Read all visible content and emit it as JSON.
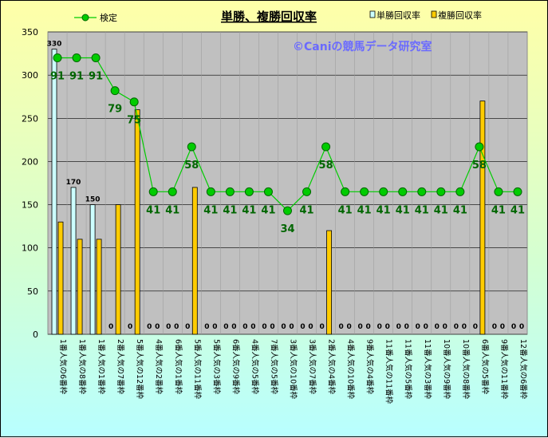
{
  "chart_data": {
    "type": "bar",
    "title": "単勝、複勝回収率",
    "watermark": "©Caniの競馬データ研究室",
    "ylim": [
      0,
      350
    ],
    "yticks": [
      0,
      50,
      100,
      150,
      200,
      250,
      300,
      350
    ],
    "grid": true,
    "legend_position": "top",
    "categories": [
      "1番人気の6番枠",
      "1番人気の8番枠",
      "1番人気の1番枠",
      "2番人気の7番枠",
      "5番人気の12番枠",
      "4番人気の2番枠",
      "6番人気の1番枠",
      "5番人気の11番枠",
      "5番人気の3番枠",
      "6番人気の9番枠",
      "4番人気の5番枠",
      "7番人気の5番枠",
      "3番人気の10番枠",
      "3番人気の7番枠",
      "2番人気の4番枠",
      "4番人気の10番枠",
      "9番人気の4番枠",
      "11番人気の11番枠",
      "11番人気の5番枠",
      "11番人気の3番枠",
      "10番人気の9番枠",
      "10番人気の8番枠",
      "6番人気の5番枠",
      "9番人気の11番枠",
      "12番人気の6番枠"
    ],
    "series": [
      {
        "name": "単勝回収率",
        "kind": "bar",
        "color": "#ccffff",
        "values": [
          330,
          170,
          150,
          0,
          0,
          0,
          0,
          0,
          0,
          0,
          0,
          0,
          0,
          0,
          0,
          0,
          0,
          0,
          0,
          0,
          0,
          0,
          0,
          0,
          0
        ]
      },
      {
        "name": "複勝回収率",
        "kind": "bar",
        "color": "#ffcc00",
        "values": [
          130,
          110,
          110,
          150,
          260,
          0,
          0,
          170,
          0,
          0,
          0,
          0,
          0,
          0,
          120,
          0,
          0,
          0,
          0,
          0,
          0,
          0,
          270,
          0,
          0
        ]
      },
      {
        "name": "検定",
        "kind": "line",
        "color": "#00cc00",
        "values": [
          91,
          91,
          91,
          79,
          75,
          41,
          41,
          58,
          41,
          41,
          41,
          41,
          34,
          41,
          58,
          41,
          41,
          41,
          41,
          41,
          41,
          41,
          58,
          41,
          41
        ],
        "plot_y": [
          320,
          320,
          320,
          282,
          269,
          165,
          165,
          217,
          165,
          165,
          165,
          165,
          143,
          165,
          217,
          165,
          165,
          165,
          165,
          165,
          165,
          165,
          217,
          165,
          165
        ]
      }
    ],
    "bar_labels": {
      "tansho": [
        "330",
        "170",
        "150",
        "",
        "",
        "",
        "",
        "",
        "",
        "",
        "",
        "",
        "",
        "",
        "",
        "",
        "",
        "",
        "",
        "",
        "",
        "",
        "",
        "",
        ""
      ],
      "fukusho_zero": [
        "",
        "",
        "",
        "0",
        "0",
        "0",
        "0",
        "0",
        "0",
        "0",
        "0",
        "0",
        "0",
        "0",
        "0",
        "0",
        "0",
        "0",
        "0",
        "0",
        "0",
        "0",
        "0",
        "0",
        "0"
      ],
      "fukusho_zero2": [
        "",
        "",
        "",
        "",
        "",
        "0",
        "0",
        "",
        "0",
        "0",
        "0",
        "0",
        "0",
        "0",
        "",
        "0",
        "0",
        "0",
        "0",
        "0",
        "0",
        "0",
        "",
        "0",
        "0"
      ]
    }
  }
}
